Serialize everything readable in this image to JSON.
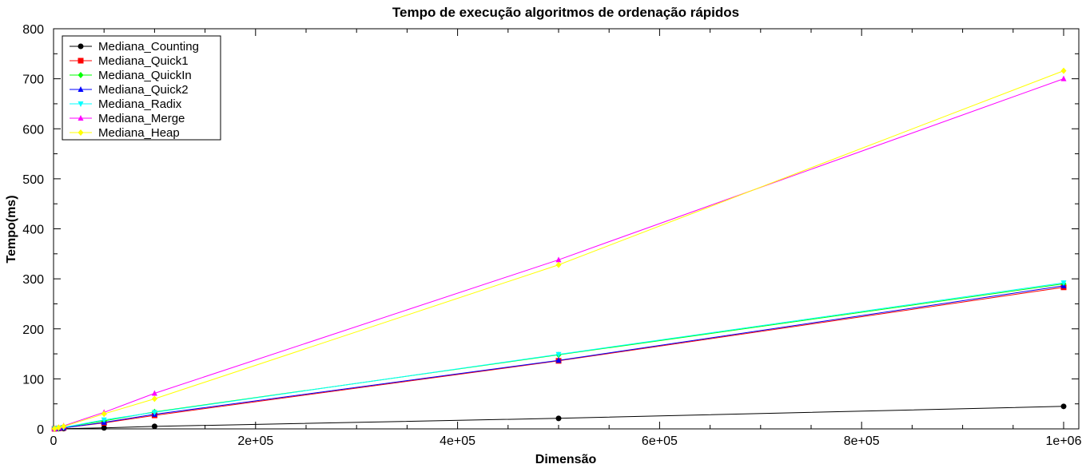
{
  "chart_data": {
    "type": "line",
    "title": "Tempo de execução algoritmos de ordenação rápidos",
    "xlabel": "Dimensão",
    "ylabel": "Tempo(ms)",
    "xlim": [
      0,
      1000000
    ],
    "ylim": [
      0,
      800
    ],
    "xticks": [
      0,
      200000,
      400000,
      600000,
      800000,
      1000000
    ],
    "xtick_labels": [
      "0",
      "2e+05",
      "4e+05",
      "6e+05",
      "8e+05",
      "1e+06"
    ],
    "yticks": [
      0,
      100,
      200,
      300,
      400,
      500,
      600,
      700,
      800
    ],
    "ytick_labels": [
      "0",
      "100",
      "200",
      "300",
      "400",
      "500",
      "600",
      "700",
      "800"
    ],
    "grid": false,
    "legend_position": "top-left",
    "x": [
      1000,
      5000,
      10000,
      50000,
      100000,
      500000,
      1000000
    ],
    "series": [
      {
        "name": "Mediana_Counting",
        "color": "#000000",
        "marker": "circle",
        "values": [
          0.1,
          0.3,
          0.5,
          2,
          5,
          21,
          45
        ]
      },
      {
        "name": "Mediana_Quick1",
        "color": "#ff0000",
        "marker": "square",
        "values": [
          0.2,
          1,
          2,
          12,
          27,
          136,
          283
        ]
      },
      {
        "name": "Mediana_QuickIn",
        "color": "#00ff00",
        "marker": "diamond",
        "values": [
          0.2,
          1,
          3,
          16,
          34,
          148,
          290
        ]
      },
      {
        "name": "Mediana_Quick2",
        "color": "#0000ff",
        "marker": "triangle-up",
        "values": [
          0.2,
          1,
          2,
          13,
          29,
          137,
          286
        ]
      },
      {
        "name": "Mediana_Radix",
        "color": "#00ffff",
        "marker": "triangle-down",
        "values": [
          0.3,
          1.5,
          3,
          18,
          33,
          149,
          292
        ]
      },
      {
        "name": "Mediana_Merge",
        "color": "#ff00ff",
        "marker": "triangle-up",
        "values": [
          0.5,
          3,
          6,
          33,
          71,
          338,
          700
        ]
      },
      {
        "name": "Mediana_Heap",
        "color": "#ffff00",
        "marker": "diamond",
        "values": [
          0.4,
          2.5,
          5,
          30,
          60,
          328,
          716
        ]
      }
    ]
  }
}
